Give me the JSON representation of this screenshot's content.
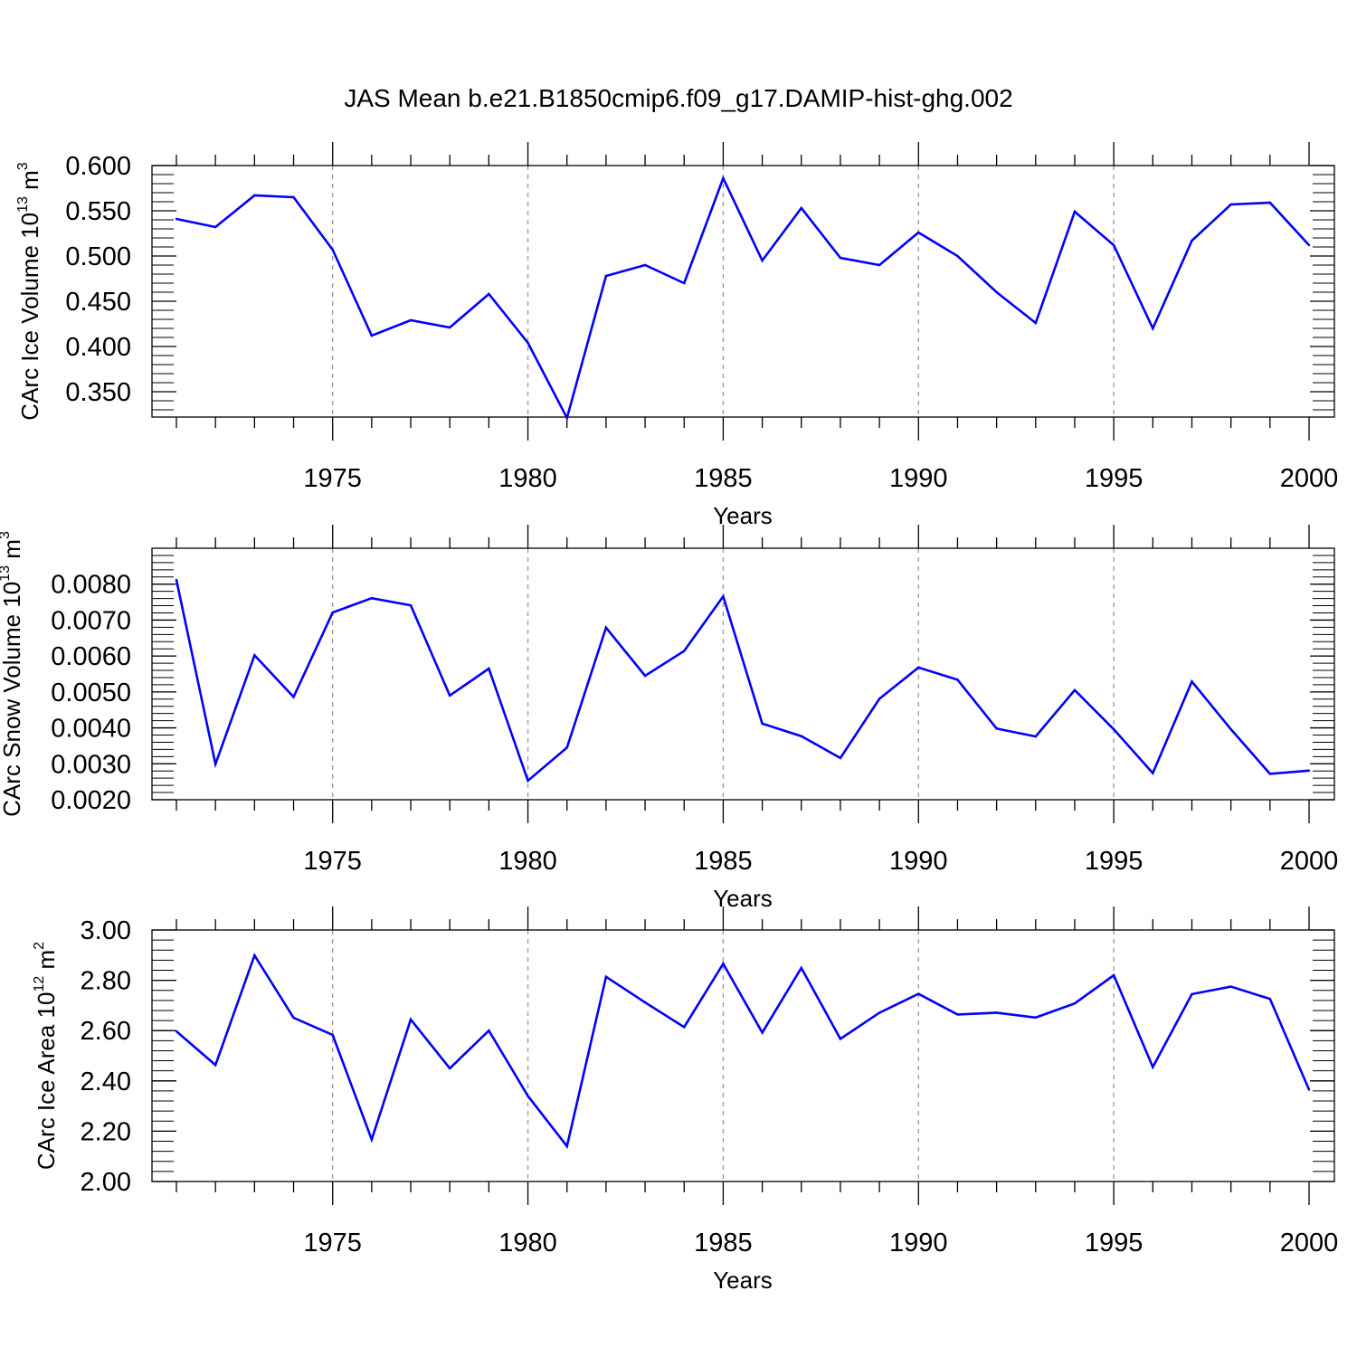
{
  "title": "JAS Mean b.e21.B1850cmip6.f09_g17.DAMIP-hist-ghg.002",
  "line_color": "#0000ff",
  "chart_data": [
    {
      "type": "line",
      "title": "JAS Mean b.e21.B1850cmip6.f09_g17.DAMIP-hist-ghg.002",
      "ylabel": "CArc Ice Volume",
      "ylabel_unit_base": "10",
      "ylabel_unit_exp": "13",
      "ylabel_unit_tail": "m",
      "ylabel_unit_tail_exp": "3",
      "xlabel": "Years",
      "xlim": [
        1971,
        2000
      ],
      "ylim": [
        0.322,
        0.6
      ],
      "yticks": [
        0.35,
        0.4,
        0.45,
        0.5,
        0.55,
        0.6
      ],
      "ytick_labels": [
        "0.350",
        "0.400",
        "0.450",
        "0.500",
        "0.550",
        "0.600"
      ],
      "xticks": [
        1975,
        1980,
        1985,
        1990,
        1995,
        2000
      ],
      "xtick_labels": [
        "1975",
        "1980",
        "1985",
        "1990",
        "1995",
        "2000"
      ],
      "x": [
        1971,
        1972,
        1973,
        1974,
        1975,
        1976,
        1977,
        1978,
        1979,
        1980,
        1981,
        1982,
        1983,
        1984,
        1985,
        1986,
        1987,
        1988,
        1989,
        1990,
        1991,
        1992,
        1993,
        1994,
        1995,
        1996,
        1997,
        1998,
        1999,
        2000
      ],
      "series": [
        {
          "name": "CArc Ice Volume",
          "values": [
            0.541,
            0.532,
            0.567,
            0.565,
            0.507,
            0.412,
            0.429,
            0.421,
            0.458,
            0.404,
            0.321,
            0.478,
            0.49,
            0.47,
            0.586,
            0.495,
            0.553,
            0.498,
            0.49,
            0.526,
            0.5,
            0.46,
            0.426,
            0.549,
            0.512,
            0.42,
            0.517,
            0.557,
            0.559,
            0.512
          ]
        }
      ]
    },
    {
      "type": "line",
      "ylabel": "CArc Snow Volume",
      "ylabel_unit_base": "10",
      "ylabel_unit_exp": "13",
      "ylabel_unit_tail": "m",
      "ylabel_unit_tail_exp": "3",
      "xlabel": "Years",
      "xlim": [
        1971,
        2000
      ],
      "ylim": [
        0.002,
        0.009
      ],
      "yticks": [
        0.002,
        0.003,
        0.004,
        0.005,
        0.006,
        0.007,
        0.008
      ],
      "ytick_labels": [
        "0.0020",
        "0.0030",
        "0.0040",
        "0.0050",
        "0.0060",
        "0.0070",
        "0.0080"
      ],
      "xticks": [
        1975,
        1980,
        1985,
        1990,
        1995,
        2000
      ],
      "xtick_labels": [
        "1975",
        "1980",
        "1985",
        "1990",
        "1995",
        "2000"
      ],
      "x": [
        1971,
        1972,
        1973,
        1974,
        1975,
        1976,
        1977,
        1978,
        1979,
        1980,
        1981,
        1982,
        1983,
        1984,
        1985,
        1986,
        1987,
        1988,
        1989,
        1990,
        1991,
        1992,
        1993,
        1994,
        1995,
        1996,
        1997,
        1998,
        1999,
        2000
      ],
      "series": [
        {
          "name": "CArc Snow Volume",
          "values": [
            0.00812,
            0.00299,
            0.00602,
            0.00486,
            0.00721,
            0.00761,
            0.00741,
            0.0049,
            0.00565,
            0.00253,
            0.00345,
            0.00679,
            0.00545,
            0.00614,
            0.00766,
            0.00412,
            0.00377,
            0.00316,
            0.00481,
            0.00568,
            0.00534,
            0.00398,
            0.00376,
            0.00505,
            0.00396,
            0.00274,
            0.00529,
            0.00396,
            0.00272,
            0.00281
          ]
        }
      ]
    },
    {
      "type": "line",
      "ylabel": "CArc Ice Area",
      "ylabel_unit_base": "10",
      "ylabel_unit_exp": "12",
      "ylabel_unit_tail": "m",
      "ylabel_unit_tail_exp": "2",
      "xlabel": "Years",
      "xlim": [
        1971,
        2000
      ],
      "ylim": [
        2.0,
        3.0
      ],
      "yticks": [
        2.0,
        2.2,
        2.4,
        2.6,
        2.8,
        3.0
      ],
      "ytick_labels": [
        "2.00",
        "2.20",
        "2.40",
        "2.60",
        "2.80",
        "3.00"
      ],
      "xticks": [
        1975,
        1980,
        1985,
        1990,
        1995,
        2000
      ],
      "xtick_labels": [
        "1975",
        "1980",
        "1985",
        "1990",
        "1995",
        "2000"
      ],
      "x": [
        1971,
        1972,
        1973,
        1974,
        1975,
        1976,
        1977,
        1978,
        1979,
        1980,
        1981,
        1982,
        1983,
        1984,
        1985,
        1986,
        1987,
        1988,
        1989,
        1990,
        1991,
        1992,
        1993,
        1994,
        1995,
        1996,
        1997,
        1998,
        1999,
        2000
      ],
      "series": [
        {
          "name": "CArc Ice Area",
          "values": [
            2.597,
            2.463,
            2.899,
            2.651,
            2.583,
            2.167,
            2.644,
            2.45,
            2.6,
            2.34,
            2.14,
            2.814,
            2.712,
            2.614,
            2.866,
            2.592,
            2.849,
            2.567,
            2.671,
            2.746,
            2.664,
            2.671,
            2.652,
            2.708,
            2.82,
            2.455,
            2.745,
            2.775,
            2.726,
            2.365
          ]
        }
      ]
    }
  ]
}
